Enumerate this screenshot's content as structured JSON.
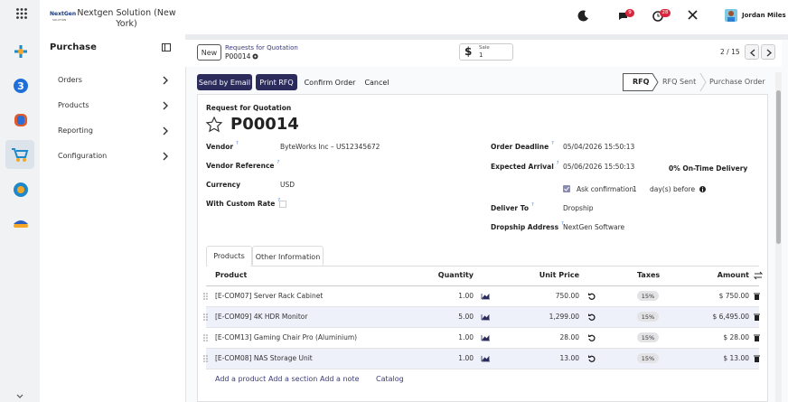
{
  "company": {
    "logo": "NextGen",
    "logo_sub": "SOLUTION",
    "name": "Nextgen Solution (New York)"
  },
  "app": "Purchase",
  "menu": [
    "Orders",
    "Products",
    "Reporting",
    "Configuration"
  ],
  "topbar": {
    "chat_badge": "9",
    "activity_badge": "28",
    "user": "Jordan Miles"
  },
  "breadcrumb": {
    "new": "New",
    "parent": "Requests for Quotation",
    "current": "P00014",
    "smart_label": "Sale",
    "smart_count": "1",
    "pager": "2 / 15"
  },
  "actions": [
    "Send by Email",
    "Print RFQ",
    "Confirm Order",
    "Cancel"
  ],
  "status": [
    "RFQ",
    "RFQ Sent",
    "Purchase Order"
  ],
  "form": {
    "kicker": "Request for Quotation",
    "name": "P00014",
    "help": "?",
    "left": [
      {
        "label": "Vendor",
        "value": "ByteWorks Inc – US12345672",
        "help": true
      },
      {
        "label": "Vendor Reference",
        "value": "",
        "help": true
      },
      {
        "label": "Currency",
        "value": "USD",
        "help": false
      },
      {
        "label": "With Custom Rate",
        "value": "",
        "help": true
      }
    ],
    "order_deadline": {
      "label": "Order Deadline",
      "value": "05/04/2026 15:50:13"
    },
    "expected_arrival": {
      "label": "Expected Arrival",
      "value": "05/06/2026 15:50:13"
    },
    "on_time": "0% On-Time Delivery",
    "ask": {
      "label": "Ask confirmation",
      "days": "1",
      "suffix": "day(s) before"
    },
    "deliver_to": {
      "label": "Deliver To",
      "value": "Dropship"
    },
    "dropship_address": {
      "label": "Dropship Address",
      "value": "NextGen Software"
    }
  },
  "tabs": [
    "Products",
    "Other Information"
  ],
  "table": {
    "headers": [
      "Product",
      "Quantity",
      "Unit Price",
      "Taxes",
      "Amount"
    ],
    "rows": [
      [
        "[E-COM07] Server Rack Cabinet",
        "1.00",
        "750.00",
        "15%",
        "$ 750.00"
      ],
      [
        "[E-COM09] 4K HDR Monitor",
        "5.00",
        "1,299.00",
        "15%",
        "$ 6,495.00"
      ],
      [
        "[E-COM13] Gaming Chair Pro (Aluminium)",
        "1.00",
        "28.00",
        "15%",
        "$ 28.00"
      ],
      [
        "[E-COM08] NAS Storage Unit",
        "1.00",
        "13.00",
        "15%",
        "$ 13.00"
      ]
    ]
  },
  "footer_links": [
    "Add a product",
    "Add a section",
    "Add a note",
    "Catalog"
  ]
}
